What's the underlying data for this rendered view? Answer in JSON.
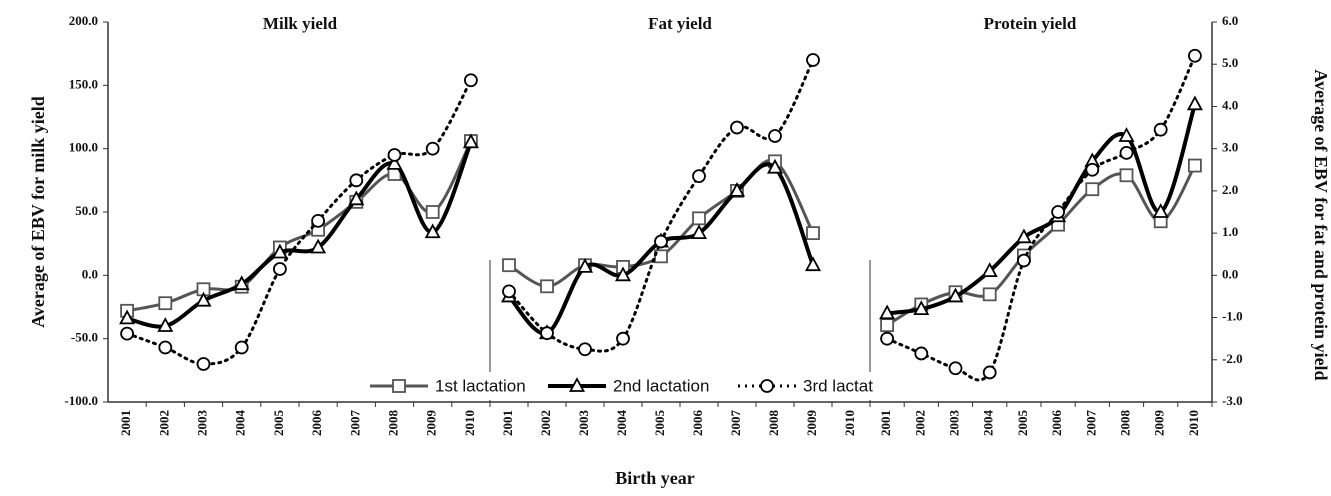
{
  "chart_data": {
    "type": "line",
    "xlabel": "Birth year",
    "ylabel": "Average of EBV for milk yield",
    "y2label": "Average of EBV for fat and protein yield",
    "ylim": [
      -100,
      200
    ],
    "yticks": [
      {
        "value": 200,
        "label": "200.0"
      },
      {
        "value": 150,
        "label": "150.0"
      },
      {
        "value": 100,
        "label": "100.0"
      },
      {
        "value": 50,
        "label": "50.0"
      },
      {
        "value": 0,
        "label": "0.0"
      },
      {
        "value": -50,
        "label": "-50.0"
      },
      {
        "value": -100,
        "label": "-100.0"
      }
    ],
    "y2lim": [
      -3,
      6
    ],
    "y2ticks": [
      {
        "value": 6,
        "label": "6.0"
      },
      {
        "value": 5,
        "label": "5.0"
      },
      {
        "value": 4,
        "label": "4.0"
      },
      {
        "value": 3,
        "label": "3.0"
      },
      {
        "value": 2,
        "label": "2.0"
      },
      {
        "value": 1,
        "label": "1.0"
      },
      {
        "value": 0,
        "label": "0.0"
      },
      {
        "value": -1,
        "label": "-1.0"
      },
      {
        "value": -2,
        "label": "-2.0"
      },
      {
        "value": -3,
        "label": "-3.0"
      }
    ],
    "legend": "bottom",
    "series": [
      {
        "name": "1st lactation",
        "color": "#555555",
        "width": 3,
        "dash": "none",
        "marker": "square"
      },
      {
        "name": "2nd lactation",
        "color": "#000000",
        "width": 4,
        "dash": "none",
        "marker": "triangle"
      },
      {
        "name": "3rd lactat",
        "color": "#000000",
        "width": 3,
        "dash": "2 5",
        "marker": "circle"
      }
    ],
    "panels": [
      {
        "title": "Milk yield",
        "axis": "y",
        "categories": [
          "2001",
          "2002",
          "2003",
          "2004",
          "2005",
          "2006",
          "2007",
          "2008",
          "2009",
          "2010"
        ],
        "series": [
          {
            "values": [
              -28,
              -22,
              -11,
              -9,
              22,
              36,
              58,
              80,
              50,
              106
            ]
          },
          {
            "values": [
              -34,
              -40,
              -20,
              -7,
              18,
              22,
              60,
              88,
              34,
              105
            ]
          },
          {
            "values": [
              -46,
              -57,
              -70,
              -57,
              5,
              43,
              75,
              95,
              100,
              154
            ]
          }
        ]
      },
      {
        "title": "Fat yield",
        "axis": "y2",
        "categories": [
          "2001",
          "2002",
          "2003",
          "2004",
          "2005",
          "2006",
          "2007",
          "2008",
          "2009",
          "2010"
        ],
        "series": [
          {
            "values": [
              0.24,
              -0.26,
              0.24,
              0.2,
              0.45,
              1.35,
              2.0,
              2.7,
              1.0,
              null
            ]
          },
          {
            "values": [
              -0.5,
              -1.37,
              0.2,
              0,
              0.8,
              1.0,
              2.0,
              2.55,
              0.24,
              null
            ]
          },
          {
            "values": [
              -0.38,
              -1.37,
              -1.75,
              -1.5,
              0.8,
              2.35,
              3.5,
              3.3,
              5.1,
              null
            ]
          }
        ]
      },
      {
        "title": "Protein yield",
        "axis": "y2",
        "categories": [
          "2001",
          "2002",
          "2003",
          "2004",
          "2005",
          "2006",
          "2007",
          "2008",
          "2009",
          "2010"
        ],
        "series": [
          {
            "values": [
              -1.18,
              -0.69,
              -0.4,
              -0.45,
              0.47,
              1.2,
              2.04,
              2.37,
              1.28,
              2.6
            ]
          },
          {
            "values": [
              -0.9,
              -0.8,
              -0.5,
              0.1,
              0.9,
              1.4,
              2.7,
              3.3,
              1.5,
              4.05
            ]
          },
          {
            "values": [
              -1.5,
              -1.85,
              -2.2,
              -2.3,
              0.35,
              1.5,
              2.5,
              2.9,
              3.45,
              5.2
            ]
          }
        ]
      }
    ]
  }
}
